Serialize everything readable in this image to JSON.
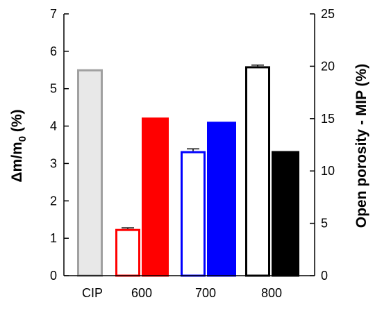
{
  "chart_data": {
    "type": "bar",
    "categories": [
      "CIP",
      "600",
      "700",
      "800"
    ],
    "ylabel_left": "Δm/m",
    "ylabel_left_subscript": "0",
    "ylabel_left_suffix": " (%)",
    "ylabel_right": "Open porosity - MIP (%)",
    "left_axis": {
      "min": 0,
      "max": 7,
      "ticks": [
        0,
        1,
        2,
        3,
        4,
        5,
        6,
        7
      ]
    },
    "right_axis": {
      "min": 0,
      "max": 25,
      "ticks": [
        0,
        5,
        10,
        15,
        20,
        25
      ]
    },
    "bars": [
      {
        "category": "CIP",
        "measure": "mass_change",
        "axis": "left",
        "value": 5.52,
        "error": 0,
        "style": "filled",
        "stroke": "#a0a0a0",
        "fill": "#e8e8e8"
      },
      {
        "category": "600",
        "measure": "mass_change",
        "axis": "left",
        "value": 1.25,
        "error": 0.03,
        "style": "hollow",
        "stroke": "#ff0000",
        "fill": "#ffffff"
      },
      {
        "category": "600",
        "measure": "open_porosity",
        "axis": "right",
        "value": 15.1,
        "error": 0,
        "style": "filled",
        "stroke": "#ff0000",
        "fill": "#ff0000"
      },
      {
        "category": "700",
        "measure": "mass_change",
        "axis": "left",
        "value": 3.33,
        "error": 0.06,
        "style": "hollow",
        "stroke": "#0000ff",
        "fill": "#ffffff"
      },
      {
        "category": "700",
        "measure": "open_porosity",
        "axis": "right",
        "value": 14.7,
        "error": 0,
        "style": "filled",
        "stroke": "#0000ff",
        "fill": "#0000ff"
      },
      {
        "category": "800",
        "measure": "mass_change",
        "axis": "left",
        "value": 5.6,
        "error": 0.03,
        "style": "hollow",
        "stroke": "#000000",
        "fill": "#ffffff"
      },
      {
        "category": "800",
        "measure": "open_porosity",
        "axis": "right",
        "value": 11.9,
        "error": 0,
        "style": "filled",
        "stroke": "#000000",
        "fill": "#000000"
      }
    ],
    "grid": false,
    "legend": "none"
  }
}
